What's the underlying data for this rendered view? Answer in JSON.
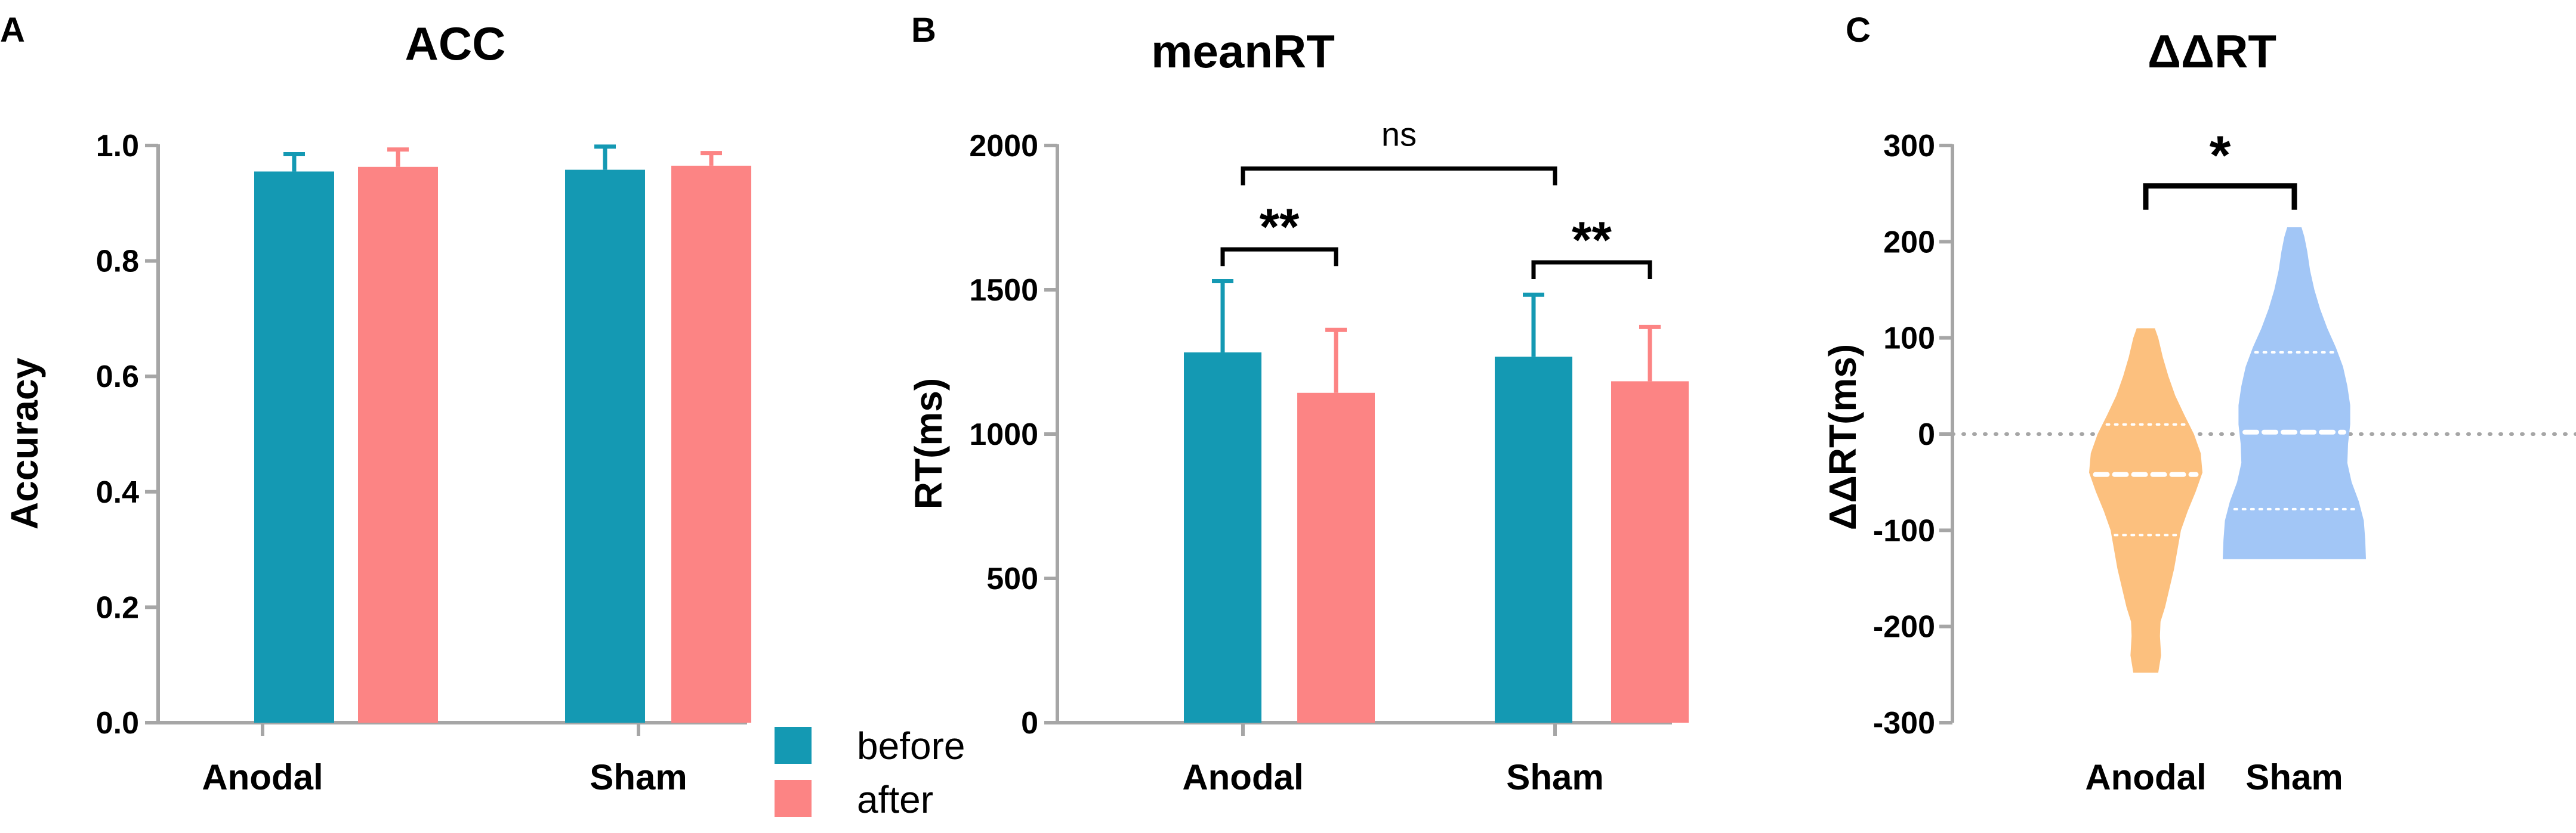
{
  "colors": {
    "before": "#1499B3",
    "after": "#FC8484",
    "anodal_violin": "#FCC07E",
    "sham_violin": "#A2C6F6",
    "axis": "#A6A6A6",
    "text": "#000000"
  },
  "legend": [
    {
      "label": "before",
      "color_key": "before"
    },
    {
      "label": "after",
      "color_key": "after"
    }
  ],
  "panels": [
    {
      "letter": "A"
    },
    {
      "letter": "B"
    },
    {
      "letter": "C"
    }
  ],
  "chart_data": [
    {
      "panel": "A",
      "type": "bar",
      "title": "ACC",
      "xlabel": "",
      "ylabel": "Accuracy",
      "ylim": [
        0,
        1.0
      ],
      "yticks": [
        0.0,
        0.2,
        0.4,
        0.6,
        0.8,
        1.0
      ],
      "ytick_labels": [
        "0.0",
        "0.2",
        "0.4",
        "0.6",
        "0.8",
        "1.0"
      ],
      "categories": [
        "Anodal",
        "Sham"
      ],
      "series": [
        {
          "name": "before",
          "values": [
            0.955,
            0.958
          ],
          "errors": [
            0.03,
            0.04
          ]
        },
        {
          "name": "after",
          "values": [
            0.963,
            0.965
          ],
          "errors": [
            0.03,
            0.022
          ]
        }
      ],
      "annotations": []
    },
    {
      "panel": "B",
      "type": "bar",
      "title": "meanRT",
      "xlabel": "",
      "ylabel": "RT(ms)",
      "ylim": [
        0,
        2000
      ],
      "yticks": [
        0,
        500,
        1000,
        1500,
        2000
      ],
      "ytick_labels": [
        "0",
        "500",
        "1000",
        "1500",
        "2000"
      ],
      "categories": [
        "Anodal",
        "Sham"
      ],
      "series": [
        {
          "name": "before",
          "values": [
            1283,
            1268
          ],
          "errors": [
            247,
            215
          ]
        },
        {
          "name": "after",
          "values": [
            1143,
            1183
          ],
          "errors": [
            218,
            188
          ]
        }
      ],
      "annotations": [
        {
          "label": "**",
          "between": [
            "Anodal-before",
            "Anodal-after"
          ],
          "y": 1640
        },
        {
          "label": "**",
          "between": [
            "Sham-before",
            "Sham-after"
          ],
          "y": 1595
        },
        {
          "label": "ns",
          "between": [
            "Anodal-center",
            "Sham-center"
          ],
          "y": 1920
        }
      ]
    },
    {
      "panel": "C",
      "type": "violin",
      "title": "ΔΔRT",
      "xlabel": "",
      "ylabel": "ΔΔRT(ms)",
      "ylim": [
        -300,
        300
      ],
      "yticks": [
        -300,
        -200,
        -100,
        0,
        100,
        200,
        300
      ],
      "ytick_labels": [
        "-300",
        "-200",
        "-100",
        "0",
        "100",
        "200",
        "300"
      ],
      "categories": [
        "Anodal",
        "Sham"
      ],
      "reference_line": 0,
      "series": [
        {
          "name": "Anodal",
          "color_key": "anodal_violin",
          "median": -42,
          "q1": -105,
          "q3": 10,
          "min": -248,
          "max": 110,
          "density": [
            [
              -248,
              0.22
            ],
            [
              -230,
              0.27
            ],
            [
              -210,
              0.25
            ],
            [
              -195,
              0.26
            ],
            [
              -180,
              0.34
            ],
            [
              -160,
              0.42
            ],
            [
              -140,
              0.5
            ],
            [
              -120,
              0.56
            ],
            [
              -100,
              0.62
            ],
            [
              -80,
              0.74
            ],
            [
              -60,
              0.88
            ],
            [
              -40,
              1.0
            ],
            [
              -20,
              0.97
            ],
            [
              0,
              0.85
            ],
            [
              20,
              0.68
            ],
            [
              40,
              0.52
            ],
            [
              60,
              0.4
            ],
            [
              80,
              0.3
            ],
            [
              100,
              0.22
            ],
            [
              110,
              0.16
            ]
          ]
        },
        {
          "name": "Sham",
          "color_key": "sham_violin",
          "median": 2,
          "q1": -78,
          "q3": 85,
          "min": -130,
          "max": 215,
          "density": [
            [
              -130,
              1.0
            ],
            [
              -110,
              0.99
            ],
            [
              -90,
              0.97
            ],
            [
              -70,
              0.9
            ],
            [
              -50,
              0.8
            ],
            [
              -30,
              0.74
            ],
            [
              -10,
              0.75
            ],
            [
              10,
              0.78
            ],
            [
              30,
              0.78
            ],
            [
              50,
              0.74
            ],
            [
              70,
              0.68
            ],
            [
              90,
              0.58
            ],
            [
              110,
              0.46
            ],
            [
              130,
              0.36
            ],
            [
              150,
              0.28
            ],
            [
              170,
              0.22
            ],
            [
              190,
              0.18
            ],
            [
              205,
              0.14
            ],
            [
              215,
              0.1
            ]
          ]
        }
      ],
      "annotations": [
        {
          "label": "*",
          "between": [
            "Anodal",
            "Sham"
          ],
          "y": 258
        }
      ]
    }
  ]
}
